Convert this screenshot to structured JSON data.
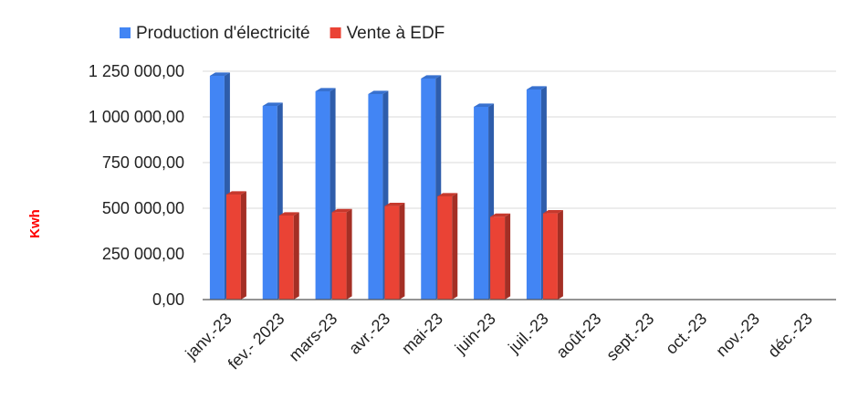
{
  "chart_data": {
    "type": "bar",
    "style": "3d",
    "categories": [
      "janv.-23",
      "fev.- 2023",
      "mars-23",
      "avr.-23",
      "mai-23",
      "juin-23",
      "juil.-23",
      "août-23",
      "sept.-23",
      "oct.-23",
      "nov.-23",
      "déc.-23"
    ],
    "series": [
      {
        "name": "Production d'électricité",
        "color": "#4285f4",
        "values": [
          1225000,
          1060000,
          1140000,
          1125000,
          1210000,
          1055000,
          1150000,
          0,
          0,
          0,
          0,
          0
        ]
      },
      {
        "name": "Vente à EDF",
        "color": "#ea4335",
        "values": [
          575000,
          460000,
          478000,
          512000,
          565000,
          453000,
          472000,
          0,
          0,
          0,
          0,
          0
        ]
      }
    ],
    "ylabel": "Kwh",
    "ylabel_color": "#ff0000",
    "ylim": [
      0,
      1250000
    ],
    "yticks": [
      0,
      250000,
      500000,
      750000,
      1000000,
      1250000
    ],
    "ytick_labels": [
      "0,00",
      "250 000,00",
      "500 000,00",
      "750 000,00",
      "1 000 000,00",
      "1 250 000,00"
    ],
    "grid": true,
    "legend_position": "top-left"
  }
}
